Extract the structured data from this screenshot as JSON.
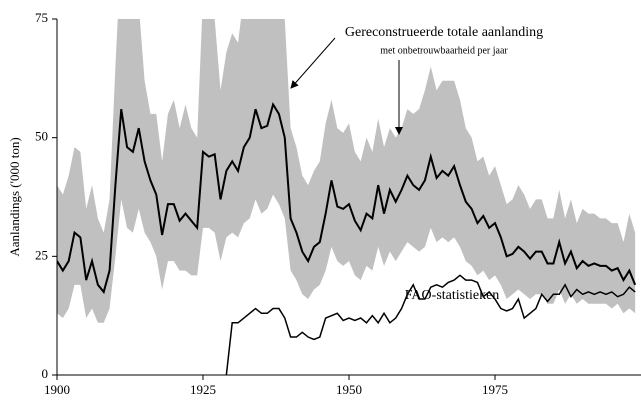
{
  "chart_data": {
    "type": "line",
    "ylabel": "Aanlandings ('000 ton)",
    "xlim": [
      1900,
      2000
    ],
    "ylim": [
      0,
      75
    ],
    "xticks": [
      1900,
      1925,
      1950,
      1975
    ],
    "yticks": [
      0,
      25,
      50,
      75
    ],
    "x": [
      1900,
      1901,
      1902,
      1903,
      1904,
      1905,
      1906,
      1907,
      1908,
      1909,
      1910,
      1911,
      1912,
      1913,
      1914,
      1915,
      1916,
      1917,
      1918,
      1919,
      1920,
      1921,
      1922,
      1923,
      1924,
      1925,
      1926,
      1927,
      1928,
      1929,
      1930,
      1931,
      1932,
      1933,
      1934,
      1935,
      1936,
      1937,
      1938,
      1939,
      1940,
      1941,
      1942,
      1943,
      1944,
      1945,
      1946,
      1947,
      1948,
      1949,
      1950,
      1951,
      1952,
      1953,
      1954,
      1955,
      1956,
      1957,
      1958,
      1959,
      1960,
      1961,
      1962,
      1963,
      1964,
      1965,
      1966,
      1967,
      1968,
      1969,
      1970,
      1971,
      1972,
      1973,
      1974,
      1975,
      1976,
      1977,
      1978,
      1979,
      1980,
      1981,
      1982,
      1983,
      1984,
      1985,
      1986,
      1987,
      1988,
      1989,
      1990,
      1991,
      1992,
      1993,
      1994,
      1995,
      1996,
      1997,
      1998,
      1999
    ],
    "band": {
      "name": "met onbetrouwbaarheid per jaar",
      "color": "#c0c0c0",
      "upper": [
        40,
        38,
        42,
        48,
        47,
        35,
        40,
        33,
        30,
        37,
        65,
        90,
        85,
        80,
        78,
        62,
        55,
        55,
        45,
        55,
        58,
        52,
        57,
        52,
        50,
        80,
        80,
        75,
        60,
        68,
        72,
        70,
        80,
        80,
        90,
        85,
        85,
        90,
        85,
        75,
        52,
        48,
        42,
        40,
        43,
        45,
        53,
        58,
        52,
        51,
        53,
        47,
        45,
        50,
        47,
        54,
        48,
        52,
        50,
        52,
        56,
        55,
        56,
        60,
        65,
        60,
        62,
        62,
        62,
        58,
        52,
        50,
        45,
        46,
        42,
        44,
        40,
        36,
        37,
        40,
        38,
        35,
        37,
        37,
        33,
        33,
        39,
        33,
        37,
        32,
        35,
        34,
        34,
        33,
        33,
        32,
        32,
        28,
        34,
        30
      ],
      "lower": [
        13,
        12,
        14,
        19,
        19,
        12,
        14,
        11,
        11,
        14,
        25,
        37,
        31,
        30,
        35,
        30,
        28,
        25,
        18,
        24,
        24,
        22,
        22,
        21,
        21,
        31,
        31,
        30,
        24,
        29,
        30,
        29,
        32,
        33,
        37,
        34,
        35,
        38,
        36,
        33,
        22,
        20,
        17,
        16,
        18,
        19,
        22,
        27,
        24,
        23,
        24,
        21,
        20,
        23,
        22,
        27,
        23,
        26,
        24,
        26,
        28,
        27,
        26,
        27,
        31,
        28,
        29,
        28,
        29,
        27,
        24,
        23,
        21,
        22,
        20,
        21,
        19,
        16,
        17,
        18,
        17,
        16,
        17,
        17,
        15,
        15,
        18,
        15,
        17,
        15,
        16,
        15,
        15,
        15,
        15,
        14,
        15,
        13,
        14,
        13
      ]
    },
    "series": [
      {
        "name": "Gereconstrueerde totale aanlanding",
        "color": "#000000",
        "values": [
          24,
          22,
          24,
          30,
          29,
          20,
          24,
          19,
          17.5,
          22,
          40,
          56,
          48,
          47,
          52,
          45,
          41,
          38,
          29.5,
          36,
          36,
          32.5,
          34,
          32.5,
          31,
          47,
          46,
          46.5,
          37,
          43,
          45,
          43,
          48,
          50,
          56,
          52,
          52.5,
          57,
          55,
          50,
          33,
          30,
          26,
          24,
          27,
          28,
          34,
          41,
          35.5,
          35,
          36,
          32.5,
          30.5,
          34,
          33,
          40,
          34,
          39,
          36.5,
          39,
          42,
          40,
          39,
          41,
          46,
          41.5,
          43,
          42,
          44,
          40,
          36.5,
          35,
          32,
          33.5,
          31,
          32,
          29,
          25,
          25.5,
          27,
          26,
          24.5,
          26,
          26,
          23.5,
          23.5,
          28,
          23.5,
          26,
          22.5,
          24,
          23,
          23.5,
          23,
          23,
          22,
          22.5,
          20,
          22,
          19
        ]
      },
      {
        "name": "FAO-statistieken",
        "color": "#000000",
        "values": [
          null,
          null,
          null,
          null,
          null,
          null,
          null,
          null,
          null,
          null,
          null,
          null,
          null,
          null,
          null,
          null,
          null,
          null,
          null,
          null,
          null,
          null,
          null,
          null,
          null,
          null,
          null,
          null,
          null,
          0,
          11,
          11,
          12,
          13,
          14,
          13,
          13,
          14,
          14,
          12,
          8,
          8,
          9,
          8,
          7.5,
          8,
          12,
          12.5,
          13,
          11.5,
          12,
          11.5,
          12,
          11,
          12.5,
          11,
          13,
          11,
          12,
          14,
          17,
          19,
          16,
          16,
          18.5,
          19,
          18.5,
          19.5,
          20,
          21,
          20,
          20,
          19.5,
          16.5,
          17.5,
          16,
          14,
          13.5,
          14,
          16,
          12,
          13,
          14,
          17,
          15.5,
          17,
          17,
          19,
          16.5,
          18,
          17,
          17.5,
          17,
          17.5,
          17,
          17.5,
          16.5,
          17,
          18.5,
          17.5
        ]
      }
    ]
  }
}
